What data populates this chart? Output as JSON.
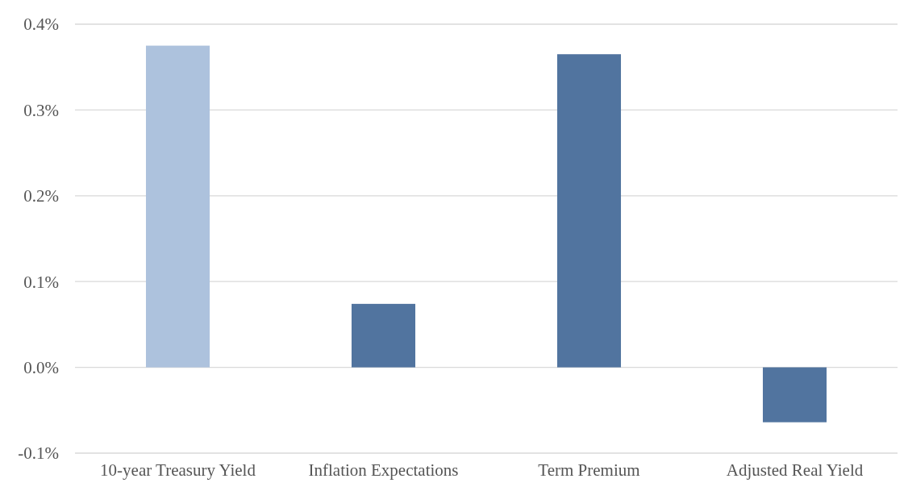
{
  "chart_data": {
    "type": "bar",
    "categories": [
      "10-year Treasury Yield",
      "Inflation Expectations",
      "Term Premium",
      "Adjusted Real Yield"
    ],
    "values": [
      0.375,
      0.074,
      0.365,
      -0.064
    ],
    "colors": [
      "#adc2dd",
      "#51749f",
      "#51749f",
      "#51749f"
    ],
    "ylim": [
      -0.1,
      0.4
    ],
    "yticks": [
      {
        "value": -0.1,
        "label": "-0.1%"
      },
      {
        "value": 0,
        "label": "0.0%"
      },
      {
        "value": 0.1,
        "label": "0.1%"
      },
      {
        "value": 0.2,
        "label": "0.2%"
      },
      {
        "value": 0.3,
        "label": "0.3%"
      },
      {
        "value": 0.4,
        "label": "0.4%"
      }
    ],
    "grid": "y"
  }
}
